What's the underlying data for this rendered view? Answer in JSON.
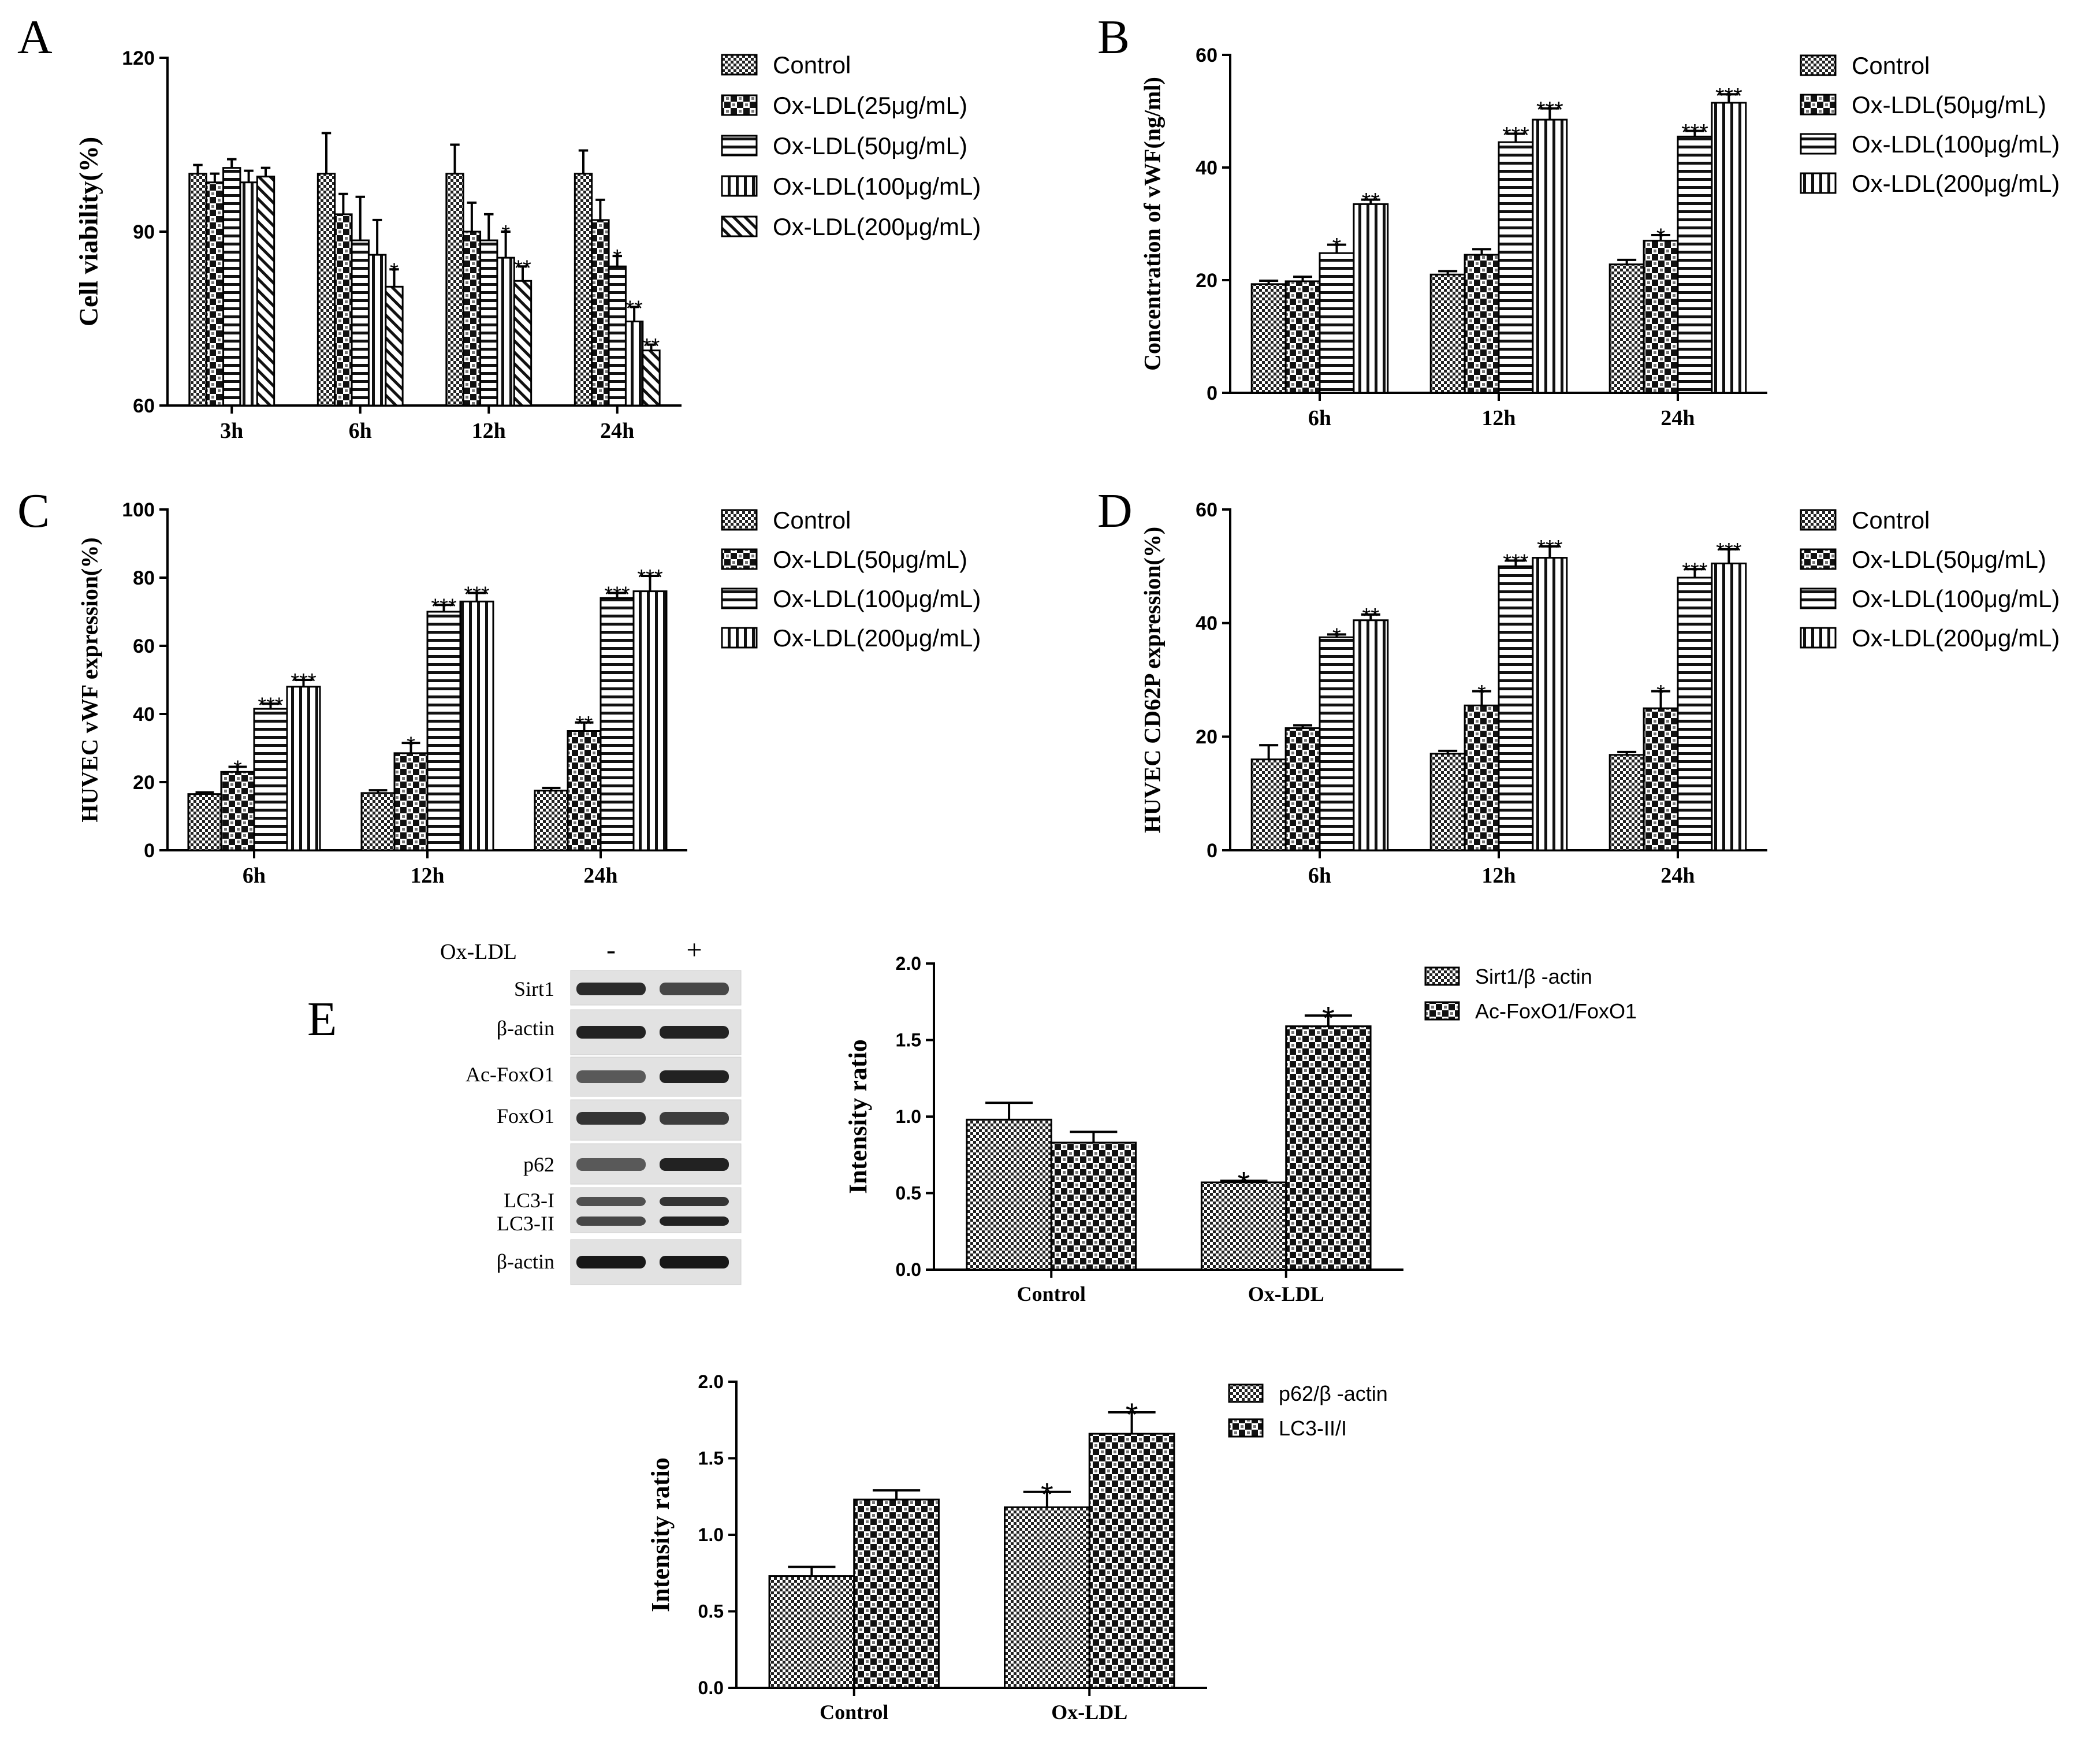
{
  "chart_data": [
    {
      "id": "A",
      "panel_letter": "A",
      "type": "bar",
      "ylabel": "Cell viability(%)",
      "ylim": [
        60,
        120
      ],
      "yticks": [
        "60",
        "90",
        "120"
      ],
      "categories": [
        "3h",
        "6h",
        "12h",
        "24h"
      ],
      "series": [
        {
          "name": "Control",
          "pattern": "check-fine",
          "values": [
            100,
            100,
            100,
            100
          ],
          "errors": [
            1.5,
            7,
            5,
            4
          ],
          "sig": [
            "",
            "",
            "",
            ""
          ]
        },
        {
          "name": "Ox-LDL(25μg/mL)",
          "pattern": "check-coarse",
          "values": [
            98.5,
            93,
            90,
            92
          ],
          "errors": [
            1.5,
            3.5,
            5,
            3.5
          ],
          "sig": [
            "",
            "",
            "",
            ""
          ]
        },
        {
          "name": "Ox-LDL(50μg/mL)",
          "pattern": "hstripe",
          "values": [
            101,
            88.5,
            88.5,
            84
          ],
          "errors": [
            1.5,
            7.5,
            4.5,
            1.8
          ],
          "sig": [
            "",
            "",
            "",
            "*"
          ]
        },
        {
          "name": "Ox-LDL(100μg/mL)",
          "pattern": "vstripe",
          "values": [
            98.5,
            86,
            85.5,
            74.5
          ],
          "errors": [
            2,
            6,
            4.5,
            2.5
          ],
          "sig": [
            "",
            "",
            "*",
            "**"
          ]
        },
        {
          "name": "Ox-LDL(200μg/mL)",
          "pattern": "diag",
          "values": [
            99.5,
            80.5,
            81.5,
            69.5
          ],
          "errors": [
            1.5,
            3,
            2.5,
            1
          ],
          "sig": [
            "",
            "*",
            "**",
            "**"
          ]
        }
      ]
    },
    {
      "id": "B",
      "panel_letter": "B",
      "type": "bar",
      "ylabel": "Concentration of vWF(ng/ml)",
      "ylim": [
        0,
        60
      ],
      "yticks": [
        "0",
        "20",
        "40",
        "60"
      ],
      "categories": [
        "6h",
        "12h",
        "24h"
      ],
      "series": [
        {
          "name": "Control",
          "pattern": "check-fine",
          "values": [
            19.3,
            21,
            22.8
          ],
          "errors": [
            0.6,
            0.6,
            0.8
          ],
          "sig": [
            "",
            "",
            ""
          ]
        },
        {
          "name": "Ox-LDL(50μg/mL)",
          "pattern": "check-coarse",
          "values": [
            19.8,
            24.5,
            27
          ],
          "errors": [
            0.8,
            1,
            1
          ],
          "sig": [
            "",
            "",
            "*"
          ]
        },
        {
          "name": "Ox-LDL(100μg/mL)",
          "pattern": "hstripe",
          "values": [
            24.8,
            44.5,
            45.5
          ],
          "errors": [
            1.5,
            1.5,
            1
          ],
          "sig": [
            "*",
            "***",
            "***"
          ]
        },
        {
          "name": "Ox-LDL(200μg/mL)",
          "pattern": "vstripe",
          "values": [
            33.5,
            48.5,
            51.5
          ],
          "errors": [
            0.8,
            2,
            1.5
          ],
          "sig": [
            "**",
            "***",
            "***"
          ]
        }
      ]
    },
    {
      "id": "C",
      "panel_letter": "C",
      "type": "bar",
      "ylabel": "HUVEC vWF expression(%)",
      "ylim": [
        0,
        100
      ],
      "yticks": [
        "0",
        "20",
        "40",
        "60",
        "80",
        "100"
      ],
      "categories": [
        "6h",
        "12h",
        "24h"
      ],
      "series": [
        {
          "name": "Control",
          "pattern": "check-fine",
          "values": [
            16.5,
            16.8,
            17.5
          ],
          "errors": [
            0.5,
            0.8,
            0.8
          ],
          "sig": [
            "",
            "",
            ""
          ]
        },
        {
          "name": "Ox-LDL(50μg/mL)",
          "pattern": "check-coarse",
          "values": [
            23,
            28.5,
            35
          ],
          "errors": [
            1.5,
            3,
            2.5
          ],
          "sig": [
            "*",
            "*",
            "**"
          ]
        },
        {
          "name": "Ox-LDL(100μg/mL)",
          "pattern": "hstripe",
          "values": [
            41.5,
            70,
            74
          ],
          "errors": [
            1.5,
            2,
            1.5
          ],
          "sig": [
            "***",
            "***",
            "***"
          ]
        },
        {
          "name": "Ox-LDL(200μg/mL)",
          "pattern": "vstripe",
          "values": [
            48,
            73,
            76
          ],
          "errors": [
            2,
            2.5,
            4.5
          ],
          "sig": [
            "***",
            "***",
            "***"
          ]
        }
      ]
    },
    {
      "id": "D",
      "panel_letter": "D",
      "type": "bar",
      "ylabel": "HUVEC CD62P expression(%)",
      "ylim": [
        0,
        60
      ],
      "yticks": [
        "0",
        "20",
        "40",
        "60"
      ],
      "categories": [
        "6h",
        "12h",
        "24h"
      ],
      "series": [
        {
          "name": "Control",
          "pattern": "check-fine",
          "values": [
            16,
            17,
            16.8
          ],
          "errors": [
            2.5,
            0.5,
            0.5
          ],
          "sig": [
            "",
            "",
            ""
          ]
        },
        {
          "name": "Ox-LDL(50μg/mL)",
          "pattern": "check-coarse",
          "values": [
            21.5,
            25.5,
            25
          ],
          "errors": [
            0.5,
            2.5,
            3
          ],
          "sig": [
            "",
            "*",
            "*"
          ]
        },
        {
          "name": "Ox-LDL(100μg/mL)",
          "pattern": "hstripe",
          "values": [
            37.5,
            50,
            48
          ],
          "errors": [
            0.5,
            1,
            1.5
          ],
          "sig": [
            "*",
            "***",
            "***"
          ]
        },
        {
          "name": "Ox-LDL(200μg/mL)",
          "pattern": "vstripe",
          "values": [
            40.5,
            51.5,
            50.5
          ],
          "errors": [
            1,
            2,
            2.5
          ],
          "sig": [
            "**",
            "***",
            "***"
          ]
        }
      ]
    },
    {
      "id": "E1",
      "panel_letter": "E",
      "type": "bar",
      "ylabel": "Intensity ratio",
      "ylim": [
        0,
        2
      ],
      "yticks": [
        "0.0",
        "0.5",
        "1.0",
        "1.5",
        "2.0"
      ],
      "categories": [
        "Control",
        "Ox-LDL"
      ],
      "series": [
        {
          "name": "Sirt1/β -actin",
          "pattern": "check-fine",
          "values": [
            0.98,
            0.57
          ],
          "errors": [
            0.11,
            0.01
          ],
          "sig": [
            "",
            "*"
          ]
        },
        {
          "name": "Ac-FoxO1/FoxO1",
          "pattern": "check-coarse",
          "values": [
            0.83,
            1.59
          ],
          "errors": [
            0.07,
            0.07
          ],
          "sig": [
            "",
            "*"
          ]
        }
      ]
    },
    {
      "id": "E2",
      "panel_letter": "",
      "type": "bar",
      "ylabel": "Intensity ratio",
      "ylim": [
        0,
        2
      ],
      "yticks": [
        "0.0",
        "0.5",
        "1.0",
        "1.5",
        "2.0"
      ],
      "categories": [
        "Control",
        "Ox-LDL"
      ],
      "series": [
        {
          "name": "p62/β -actin",
          "pattern": "check-fine",
          "values": [
            0.73,
            1.18
          ],
          "errors": [
            0.06,
            0.1
          ],
          "sig": [
            "",
            "*"
          ]
        },
        {
          "name": "LC3-II/I",
          "pattern": "check-coarse",
          "values": [
            1.23,
            1.66
          ],
          "errors": [
            0.06,
            0.14
          ],
          "sig": [
            "",
            "*"
          ]
        }
      ]
    }
  ],
  "western_blot": {
    "header_label": "Ox-LDL",
    "lanes": [
      "-",
      "+"
    ],
    "rows": [
      {
        "label": "Sirt1",
        "intensity": [
          0.85,
          0.7
        ]
      },
      {
        "label": "β-actin",
        "intensity": [
          0.9,
          0.9
        ]
      },
      {
        "label": "Ac-FoxO1",
        "intensity": [
          0.6,
          0.9
        ]
      },
      {
        "label": "FoxO1",
        "intensity": [
          0.8,
          0.75
        ]
      },
      {
        "label": "p62",
        "intensity": [
          0.6,
          0.9
        ]
      },
      {
        "label": "LC3-I",
        "intensity": [
          0.65,
          0.8
        ]
      },
      {
        "label": "LC3-II",
        "intensity": [
          0.7,
          0.9
        ]
      },
      {
        "label": "β-actin",
        "intensity": [
          0.95,
          0.95
        ]
      }
    ]
  }
}
